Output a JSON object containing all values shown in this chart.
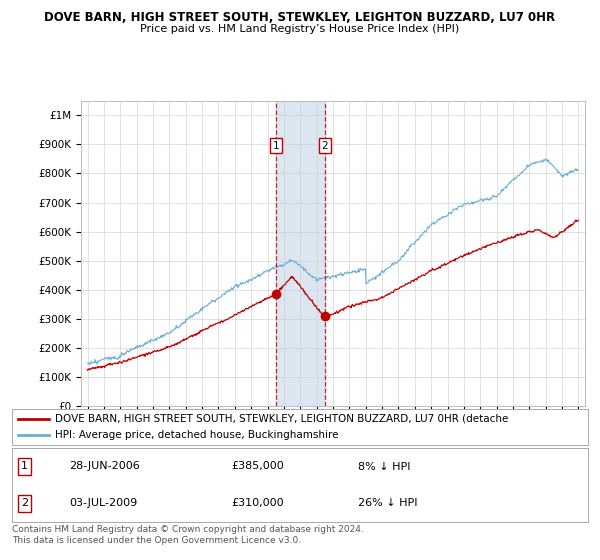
{
  "title1": "DOVE BARN, HIGH STREET SOUTH, STEWKLEY, LEIGHTON BUZZARD, LU7 0HR",
  "title2": "Price paid vs. HM Land Registry’s House Price Index (HPI)",
  "ylim": [
    0,
    1050000
  ],
  "yticks": [
    0,
    100000,
    200000,
    300000,
    400000,
    500000,
    600000,
    700000,
    800000,
    900000,
    1000000
  ],
  "ytick_labels": [
    "£0",
    "£100K",
    "£200K",
    "£300K",
    "£400K",
    "£500K",
    "£600K",
    "£700K",
    "£800K",
    "£900K",
    "£1M"
  ],
  "sale1_date": 2006.5,
  "sale1_price": 385000,
  "sale2_date": 2009.5,
  "sale2_price": 310000,
  "shade_color": "#dce6f1",
  "hpi_color": "#6baed6",
  "price_color": "#c00000",
  "grid_color": "#d3d3d3",
  "legend_label1": "DOVE BARN, HIGH STREET SOUTH, STEWKLEY, LEIGHTON BUZZARD, LU7 0HR (detache",
  "legend_label2": "HPI: Average price, detached house, Buckinghamshire",
  "table_rows": [
    {
      "num": "1",
      "date": "28-JUN-2006",
      "price": "£385,000",
      "hpi": "8% ↓ HPI"
    },
    {
      "num": "2",
      "date": "03-JUL-2009",
      "price": "£310,000",
      "hpi": "26% ↓ HPI"
    }
  ],
  "footer": "Contains HM Land Registry data © Crown copyright and database right 2024.\nThis data is licensed under the Open Government Licence v3.0.",
  "bg_color": "#ffffff",
  "xlim_left": 1994.6,
  "xlim_right": 2025.4,
  "xtick_start": 1995,
  "xtick_end": 2025
}
